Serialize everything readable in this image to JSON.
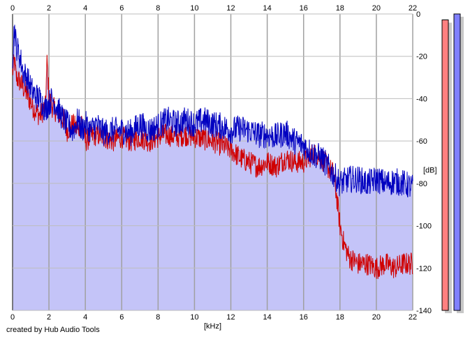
{
  "credit": "created by Hub Audio Tools",
  "chart_data": {
    "type": "area",
    "xlabel": "[kHz]",
    "ylabel": "[dB]",
    "xlim": [
      0,
      22
    ],
    "ylim": [
      -140,
      0
    ],
    "x_ticks": [
      "0",
      "2",
      "4",
      "6",
      "8",
      "10",
      "12",
      "14",
      "16",
      "18",
      "20",
      "22"
    ],
    "y_ticks": [
      "0",
      "-20",
      "-40",
      "-60",
      "-80",
      "-100",
      "-120",
      "-140"
    ],
    "grid": true,
    "series": [
      {
        "color": "#d00000",
        "x": [
          0,
          0.1,
          0.2,
          0.4,
          0.6,
          0.8,
          1,
          1.2,
          1.5,
          1.8,
          1.9,
          2,
          2.2,
          2.5,
          2.8,
          3,
          3.3,
          3.6,
          3.8,
          4,
          4.3,
          4.6,
          5,
          5.5,
          6,
          6.5,
          7,
          7.5,
          8,
          8.5,
          9,
          9.5,
          10,
          10.5,
          11,
          11.5,
          12,
          12.5,
          13,
          13.5,
          14,
          14.5,
          15,
          15.5,
          16,
          16.5,
          17,
          17.3,
          17.6,
          17.8,
          18,
          18.2,
          18.5,
          19,
          19.5,
          20,
          20.5,
          21,
          21.5,
          22
        ],
        "values": [
          -28,
          -22,
          -30,
          -32,
          -35,
          -38,
          -42,
          -45,
          -48,
          -44,
          -22,
          -40,
          -44,
          -47,
          -50,
          -55,
          -52,
          -55,
          -50,
          -60,
          -58,
          -57,
          -58,
          -60,
          -58,
          -60,
          -58,
          -60,
          -58,
          -57,
          -58,
          -57,
          -58,
          -59,
          -60,
          -62,
          -64,
          -68,
          -70,
          -72,
          -70,
          -72,
          -68,
          -70,
          -70,
          -66,
          -68,
          -72,
          -75,
          -85,
          -100,
          -108,
          -115,
          -118,
          -118,
          -120,
          -118,
          -120,
          -118,
          -118
        ]
      },
      {
        "color": "#0000c0",
        "x": [
          0,
          0.1,
          0.2,
          0.4,
          0.6,
          0.8,
          1,
          1.2,
          1.5,
          1.8,
          2,
          2.2,
          2.5,
          2.8,
          3,
          3.3,
          3.6,
          3.8,
          4,
          4.3,
          4.6,
          5,
          5.5,
          6,
          6.5,
          7,
          7.5,
          8,
          8.5,
          9,
          9.5,
          10,
          10.5,
          11,
          11.5,
          12,
          12.5,
          13,
          13.5,
          14,
          14.5,
          15,
          15.5,
          16,
          16.5,
          17,
          17.5,
          18,
          18.5,
          19,
          19.5,
          20,
          20.5,
          21,
          21.5,
          22
        ],
        "values": [
          -20,
          -6,
          -15,
          -20,
          -28,
          -30,
          -35,
          -38,
          -40,
          -45,
          -42,
          -40,
          -45,
          -50,
          -52,
          -55,
          -50,
          -55,
          -52,
          -55,
          -52,
          -56,
          -55,
          -55,
          -56,
          -52,
          -55,
          -53,
          -50,
          -52,
          -50,
          -52,
          -50,
          -52,
          -53,
          -55,
          -54,
          -55,
          -57,
          -57,
          -58,
          -56,
          -60,
          -62,
          -66,
          -68,
          -74,
          -80,
          -78,
          -78,
          -80,
          -78,
          -80,
          -79,
          -80,
          -82
        ]
      }
    ],
    "fill_color": "#c4c4f8",
    "meters": [
      {
        "color": "#ff8080",
        "level": 0.98
      },
      {
        "color": "#8080ff",
        "level": 1.0
      }
    ]
  }
}
